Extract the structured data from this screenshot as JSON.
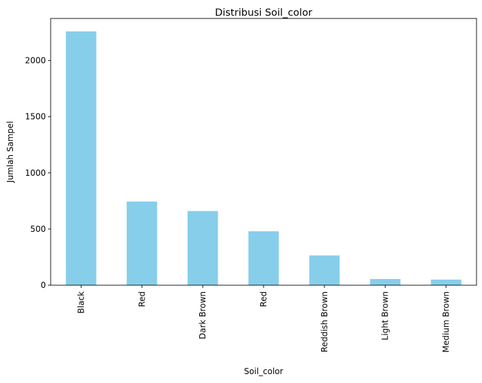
{
  "chart_data": {
    "type": "bar",
    "title": "Distribusi Soil_color",
    "xlabel": "Soil_color",
    "ylabel": "Jumlah Sampel",
    "categories": [
      "Black",
      "Red",
      "Dark Brown",
      "Red",
      "Reddish Brown",
      "Light Brown",
      "Medium Brown"
    ],
    "values": [
      2260,
      745,
      660,
      480,
      265,
      55,
      50
    ],
    "ylim": [
      0,
      2375
    ],
    "yticks": [
      0,
      500,
      1000,
      1500,
      2000
    ],
    "bar_color": "#87ceeb",
    "grid": false,
    "legend": false
  }
}
